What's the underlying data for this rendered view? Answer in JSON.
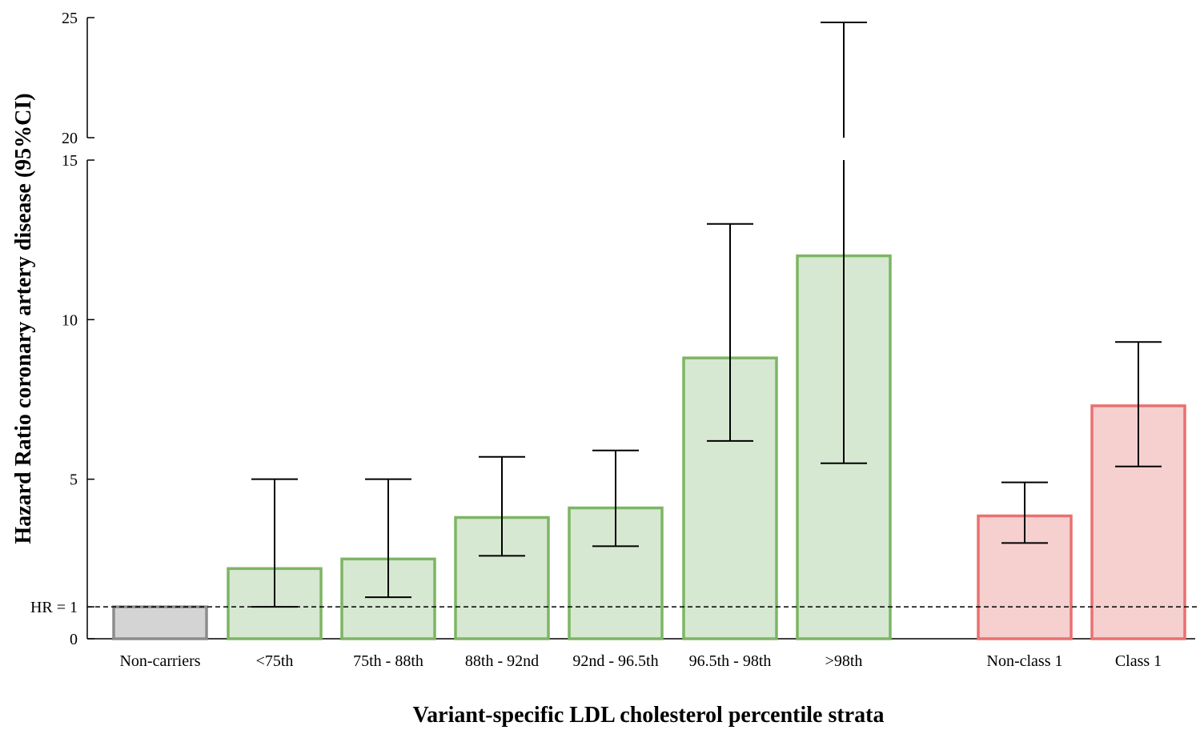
{
  "chart_data": {
    "type": "bar",
    "xlabel": "Variant-specific LDL cholesterol percentile strata",
    "ylabel": "Hazard Ratio coronary artery disease (95%CI)",
    "y_axis_break": [
      15,
      20
    ],
    "ylim": [
      0,
      25
    ],
    "yticks_lower": [
      "0",
      "5",
      "10",
      "15"
    ],
    "yticks_upper": [
      "20",
      "25"
    ],
    "reference_line": {
      "value": 1,
      "label": "HR = 1",
      "style": "dashed"
    },
    "categories": [
      "Non-carriers",
      "<75th",
      "75th - 88th",
      "88th - 92nd",
      "92nd - 96.5th",
      "96.5th - 98th",
      ">98th",
      "Non-class 1",
      "Class 1"
    ],
    "values": [
      1.0,
      2.2,
      2.5,
      3.8,
      4.1,
      8.8,
      12.0,
      3.85,
      7.3
    ],
    "ci_low": [
      null,
      1.0,
      1.3,
      2.6,
      2.9,
      6.2,
      5.5,
      3.0,
      5.4
    ],
    "ci_high": [
      null,
      5.0,
      5.0,
      5.7,
      5.9,
      13.0,
      24.8,
      4.9,
      9.3
    ],
    "group": [
      "reference",
      "percentile",
      "percentile",
      "percentile",
      "percentile",
      "percentile",
      "percentile",
      "class",
      "class"
    ],
    "colors": {
      "reference": {
        "fill": "#d4d4d4",
        "stroke": "#8c8c8c"
      },
      "percentile": {
        "fill": "#d6e8d1",
        "stroke": "#7db564"
      },
      "class": {
        "fill": "#f6cfcf",
        "stroke": "#ea7070"
      }
    },
    "grid": false,
    "legend": "none"
  }
}
